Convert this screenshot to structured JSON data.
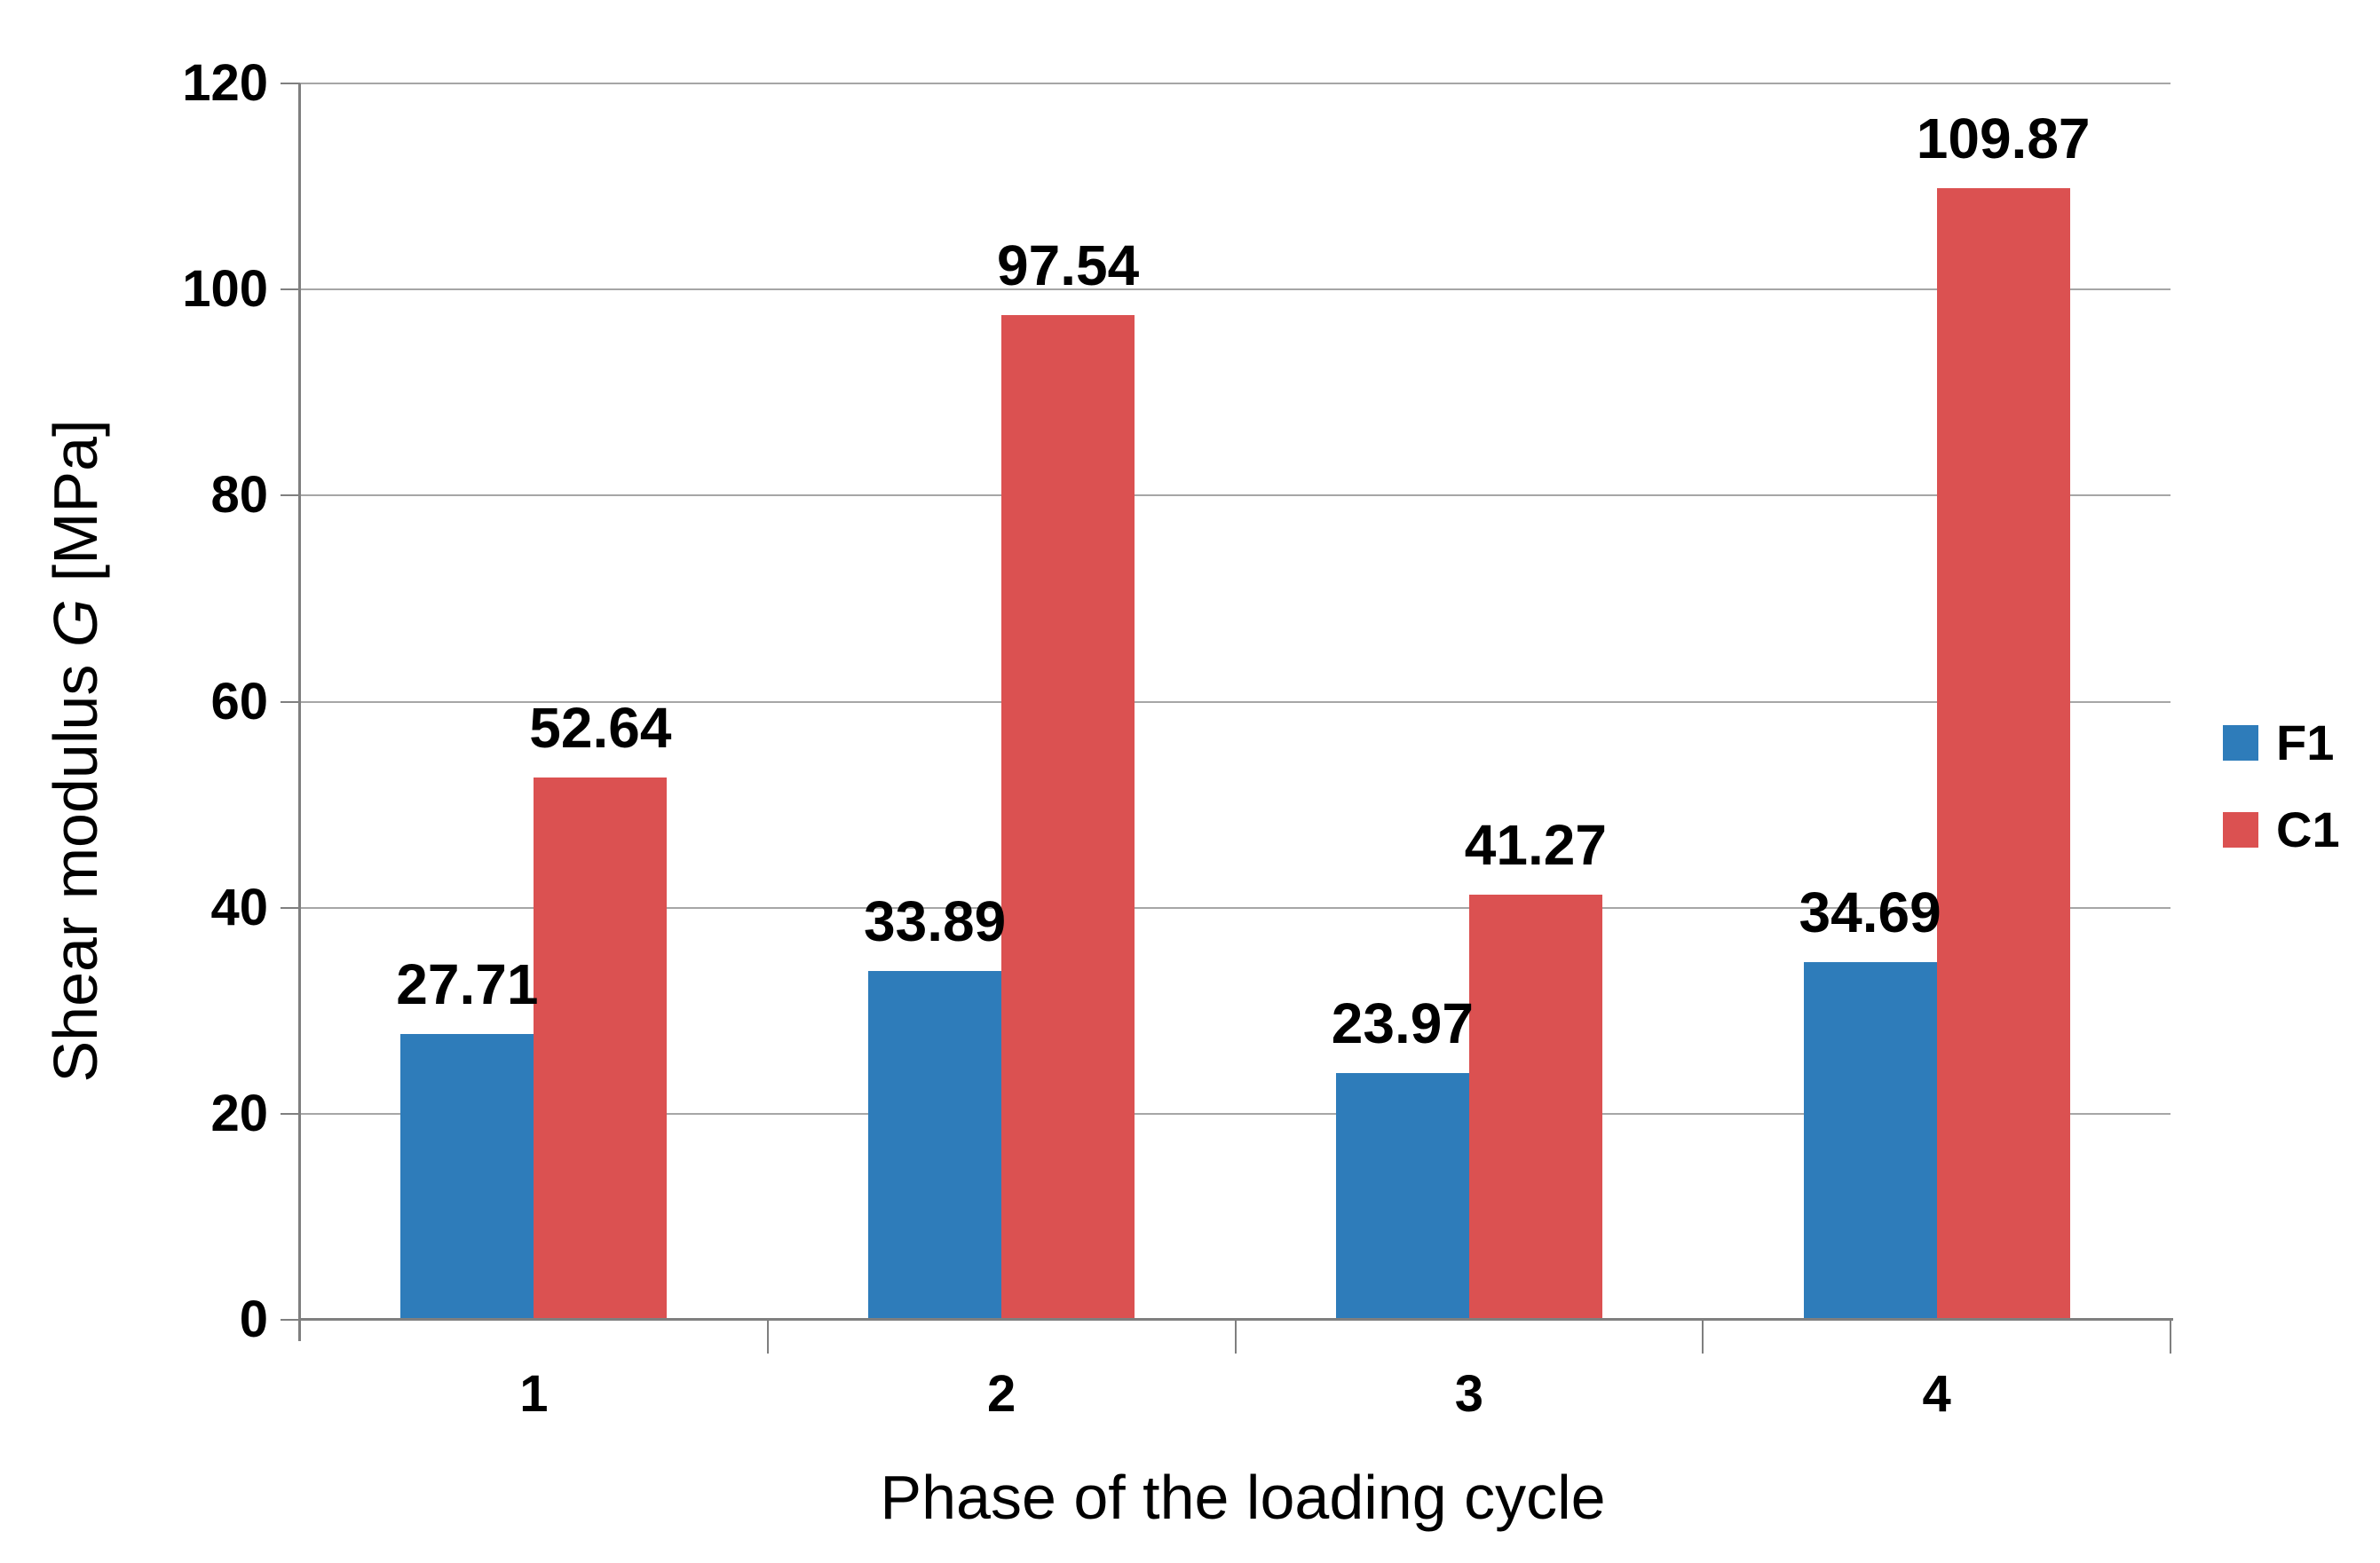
{
  "chart_data": {
    "type": "bar",
    "title": "",
    "xlabel": "Phase of the loading cycle",
    "ylabel": "Shear modulus G [MPa]",
    "ylabel_parts": {
      "prefix": "Shear modulus ",
      "symbol": "G",
      "suffix": " [MPa]"
    },
    "categories": [
      "1",
      "2",
      "3",
      "4"
    ],
    "series": [
      {
        "name": "F1",
        "color": "#2E7CBA",
        "values": [
          27.71,
          33.89,
          23.97,
          34.69
        ],
        "labels": [
          "27.71",
          "33.89",
          "23.97",
          "34.69"
        ]
      },
      {
        "name": "C1",
        "color": "#DB5151",
        "values": [
          52.64,
          97.54,
          41.27,
          109.87
        ],
        "labels": [
          "52.64",
          "97.54",
          "41.27",
          "109.87"
        ]
      }
    ],
    "ylim": [
      0,
      120
    ],
    "yticks": [
      0,
      20,
      40,
      60,
      80,
      100,
      120
    ],
    "ytick_labels": [
      "0",
      "20",
      "40",
      "60",
      "80",
      "100",
      "120"
    ],
    "grid": true,
    "legend_position": "right",
    "legend_entries": [
      "F1",
      "C1"
    ],
    "colors": {
      "gridline": "#A6A6A6",
      "axis": "#7F7F7F",
      "text": "#000000",
      "background": "#FFFFFF"
    }
  }
}
